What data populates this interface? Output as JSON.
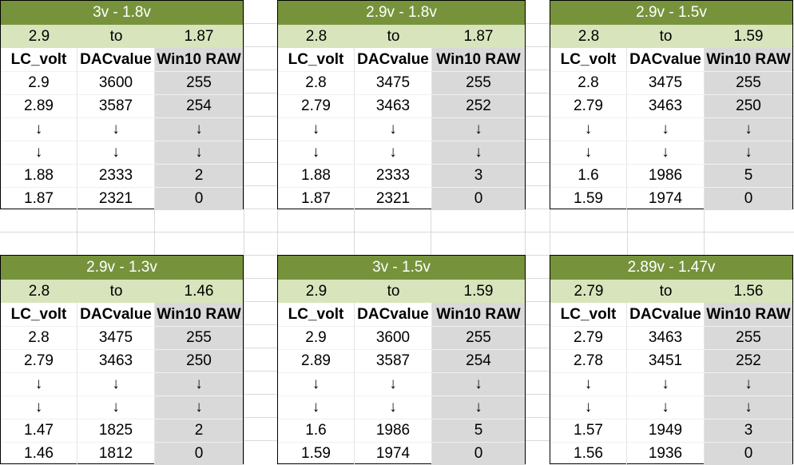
{
  "blocks": [
    {
      "title": "3v - 1.8v",
      "range": {
        "from": "2.9",
        "to_label": "to",
        "to": "1.87"
      },
      "headers": [
        "LC_volt",
        "DACvalue",
        "Win10 RAW"
      ],
      "rows": [
        [
          "2.9",
          "3600",
          "255"
        ],
        [
          "2.89",
          "3587",
          "254"
        ],
        [
          "↓",
          "↓",
          "↓"
        ],
        [
          "↓",
          "↓",
          "↓"
        ],
        [
          "1.88",
          "2333",
          "2"
        ],
        [
          "1.87",
          "2321",
          "0"
        ]
      ]
    },
    {
      "title": "2.9v - 1.8v",
      "range": {
        "from": "2.8",
        "to_label": "to",
        "to": "1.87"
      },
      "headers": [
        "LC_volt",
        "DACvalue",
        "Win10 RAW"
      ],
      "rows": [
        [
          "2.8",
          "3475",
          "255"
        ],
        [
          "2.79",
          "3463",
          "252"
        ],
        [
          "↓",
          "↓",
          "↓"
        ],
        [
          "↓",
          "↓",
          "↓"
        ],
        [
          "1.88",
          "2333",
          "3"
        ],
        [
          "1.87",
          "2321",
          "0"
        ]
      ]
    },
    {
      "title": "2.9v - 1.5v",
      "range": {
        "from": "2.8",
        "to_label": "to",
        "to": "1.59"
      },
      "headers": [
        "LC_volt",
        "DACvalue",
        "Win10 RAW"
      ],
      "rows": [
        [
          "2.8",
          "3475",
          "255"
        ],
        [
          "2.79",
          "3463",
          "250"
        ],
        [
          "↓",
          "↓",
          "↓"
        ],
        [
          "↓",
          "↓",
          "↓"
        ],
        [
          "1.6",
          "1986",
          "5"
        ],
        [
          "1.59",
          "1974",
          "0"
        ]
      ]
    },
    {
      "title": "2.9v - 1.3v",
      "range": {
        "from": "2.8",
        "to_label": "to",
        "to": "1.46"
      },
      "headers": [
        "LC_volt",
        "DACvalue",
        "Win10 RAW"
      ],
      "rows": [
        [
          "2.8",
          "3475",
          "255"
        ],
        [
          "2.79",
          "3463",
          "250"
        ],
        [
          "↓",
          "↓",
          "↓"
        ],
        [
          "↓",
          "↓",
          "↓"
        ],
        [
          "1.47",
          "1825",
          "2"
        ],
        [
          "1.46",
          "1812",
          "0"
        ]
      ]
    },
    {
      "title": "3v - 1.5v",
      "range": {
        "from": "2.9",
        "to_label": "to",
        "to": "1.59"
      },
      "headers": [
        "LC_volt",
        "DACvalue",
        "Win10 RAW"
      ],
      "rows": [
        [
          "2.9",
          "3600",
          "255"
        ],
        [
          "2.89",
          "3587",
          "254"
        ],
        [
          "↓",
          "↓",
          "↓"
        ],
        [
          "↓",
          "↓",
          "↓"
        ],
        [
          "1.6",
          "1986",
          "5"
        ],
        [
          "1.59",
          "1974",
          "0"
        ]
      ]
    },
    {
      "title": "2.89v - 1.47v",
      "range": {
        "from": "2.79",
        "to_label": "to",
        "to": "1.56"
      },
      "headers": [
        "LC_volt",
        "DACvalue",
        "Win10 RAW"
      ],
      "rows": [
        [
          "2.79",
          "3463",
          "255"
        ],
        [
          "2.78",
          "3451",
          "252"
        ],
        [
          "↓",
          "↓",
          "↓"
        ],
        [
          "↓",
          "↓",
          "↓"
        ],
        [
          "1.57",
          "1949",
          "3"
        ],
        [
          "1.56",
          "1936",
          "0"
        ]
      ]
    }
  ]
}
